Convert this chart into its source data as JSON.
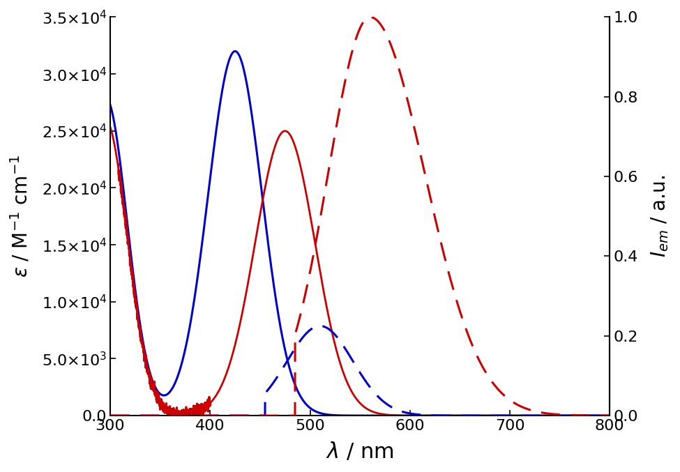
{
  "background_color": "#ffffff",
  "xlim": [
    300,
    800
  ],
  "ylim_left": [
    0,
    35000
  ],
  "ylim_right": [
    0,
    1.0
  ],
  "yticks_left": [
    0,
    5000,
    10000,
    15000,
    20000,
    25000,
    30000,
    35000
  ],
  "yticks_right": [
    0.0,
    0.2,
    0.4,
    0.6,
    0.8,
    1.0
  ],
  "xticks": [
    300,
    400,
    500,
    600,
    700,
    800
  ],
  "blue_color": "#0000cc",
  "red_color": "#cc0000",
  "linewidth": 2.2,
  "fontsize_ticks": 16,
  "fontsize_labels": 20,
  "fontsize_xlabel": 22
}
